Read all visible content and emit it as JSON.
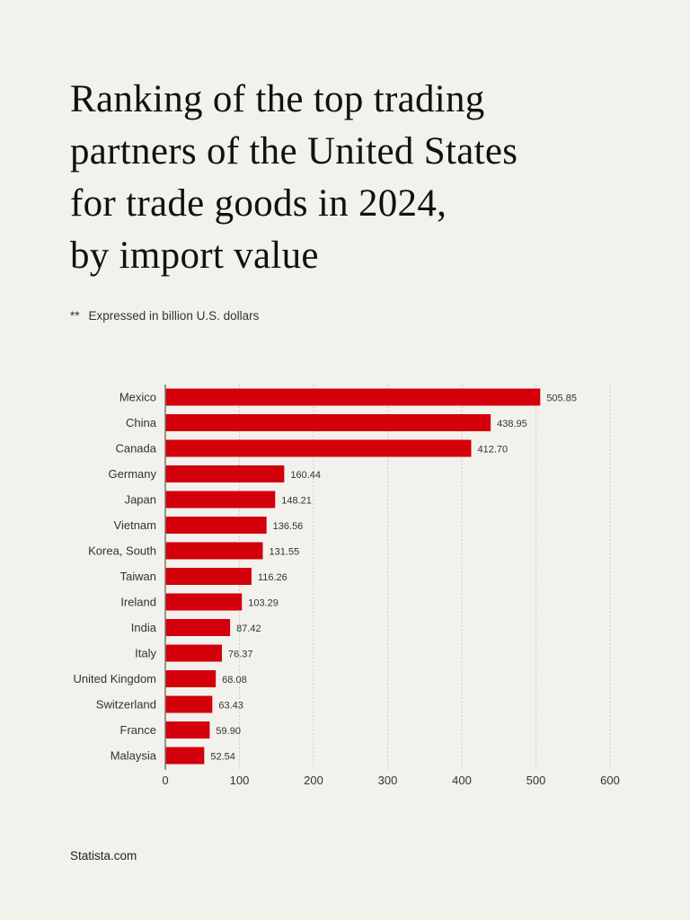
{
  "title": "Ranking of the top trading partners of the United States for trade goods in 2024, by import value",
  "title_lines": [
    "Ranking of the top trading",
    "partners of the United States",
    "for trade goods in 2024,",
    "by import value"
  ],
  "note": {
    "marker": "**",
    "text": "Expressed in billion U.S. dollars"
  },
  "source": "Statista.com",
  "colors": {
    "bar": "#d3000c",
    "background": "#f2f1ec",
    "grid": "#cfcdc8"
  },
  "chart_data": {
    "type": "bar",
    "orientation": "horizontal",
    "categories": [
      "Mexico",
      "China",
      "Canada",
      "Germany",
      "Japan",
      "Vietnam",
      "Korea, South",
      "Taiwan",
      "Ireland",
      "India",
      "Italy",
      "United Kingdom",
      "Switzerland",
      "France",
      "Malaysia"
    ],
    "values": [
      505.85,
      438.95,
      412.7,
      160.44,
      148.21,
      136.56,
      131.55,
      116.26,
      103.29,
      87.42,
      76.37,
      68.08,
      63.43,
      59.9,
      52.54
    ],
    "value_labels": [
      "505.85",
      "438.95",
      "412.70",
      "160.44",
      "148.21",
      "136.56",
      "131.55",
      "116.26",
      "103.29",
      "87.42",
      "76.37",
      "68.08",
      "63.43",
      "59.90",
      "52.54"
    ],
    "xlim": [
      0,
      600
    ],
    "xticks": [
      "0",
      "100",
      "200",
      "300",
      "400",
      "500",
      "600"
    ],
    "xlabel": "",
    "ylabel": "",
    "grid": true
  }
}
